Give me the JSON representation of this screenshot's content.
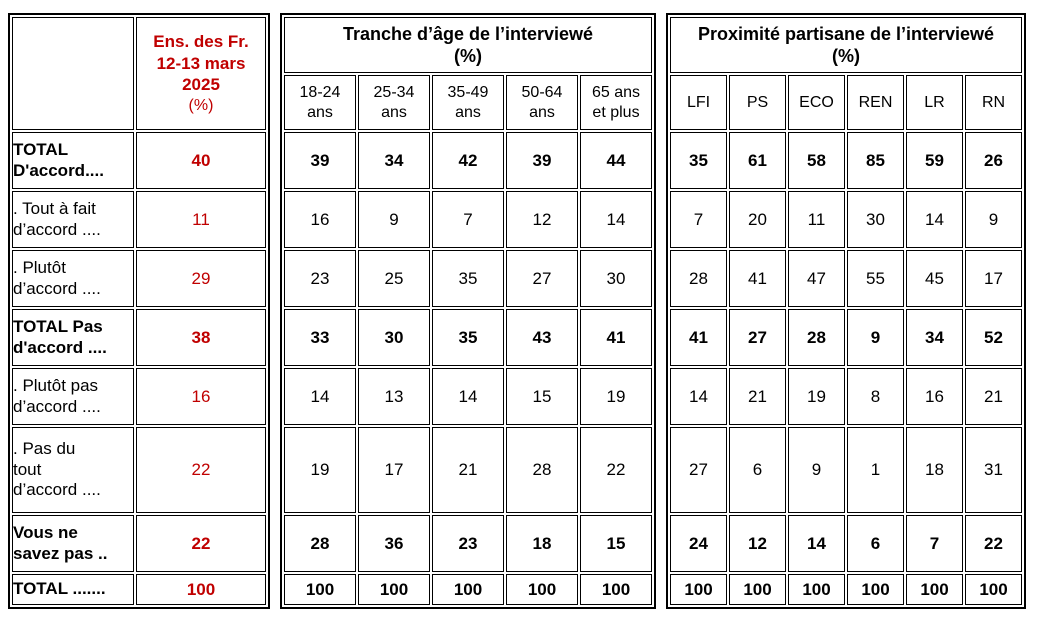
{
  "colors": {
    "accent_red": "#C00000",
    "border_black": "#000000",
    "background": "#FFFFFF"
  },
  "ensemble_table": {
    "header": {
      "title": "Ens. des Fr.\n12-13 mars\n2025",
      "unit": "(%)"
    }
  },
  "age_table": {
    "title": "Tranche d’âge de l’interviewé",
    "unit": "(%)",
    "columns": [
      "18-24\nans",
      "25-34\nans",
      "35-49\nans",
      "50-64\nans",
      "65 ans\net plus"
    ]
  },
  "party_table": {
    "title": "Proximité partisane de l’interviewé",
    "unit": "(%)",
    "columns": [
      "LFI",
      "PS",
      "ECO",
      "REN",
      "LR",
      "RN"
    ]
  },
  "rows": [
    {
      "label": "TOTAL\nD'accord....",
      "bold": true,
      "ensemble": "40",
      "age": [
        "39",
        "34",
        "42",
        "39",
        "44"
      ],
      "party": [
        "35",
        "61",
        "58",
        "85",
        "59",
        "26"
      ]
    },
    {
      "label": ". Tout à fait\nd’accord ....",
      "bold": false,
      "ensemble": "11",
      "age": [
        "16",
        "9",
        "7",
        "12",
        "14"
      ],
      "party": [
        "7",
        "20",
        "11",
        "30",
        "14",
        "9"
      ]
    },
    {
      "label": ". Plutôt\nd’accord ....",
      "bold": false,
      "ensemble": "29",
      "age": [
        "23",
        "25",
        "35",
        "27",
        "30"
      ],
      "party": [
        "28",
        "41",
        "47",
        "55",
        "45",
        "17"
      ]
    },
    {
      "label": "TOTAL Pas\nd'accord ....",
      "bold": true,
      "ensemble": "38",
      "age": [
        "33",
        "30",
        "35",
        "43",
        "41"
      ],
      "party": [
        "41",
        "27",
        "28",
        "9",
        "34",
        "52"
      ]
    },
    {
      "label": ". Plutôt pas\nd’accord ....",
      "bold": false,
      "ensemble": "16",
      "age": [
        "14",
        "13",
        "14",
        "15",
        "19"
      ],
      "party": [
        "14",
        "21",
        "19",
        "8",
        "16",
        "21"
      ]
    },
    {
      "label": ". Pas du\ntout\nd’accord ....",
      "bold": false,
      "ensemble": "22",
      "age": [
        "19",
        "17",
        "21",
        "28",
        "22"
      ],
      "party": [
        "27",
        "6",
        "9",
        "1",
        "18",
        "31"
      ]
    },
    {
      "label": "Vous ne\nsavez pas ..",
      "bold": true,
      "ensemble": "22",
      "age": [
        "28",
        "36",
        "23",
        "18",
        "15"
      ],
      "party": [
        "24",
        "12",
        "14",
        "6",
        "7",
        "22"
      ]
    },
    {
      "label": "TOTAL .......",
      "bold": true,
      "ensemble": "100",
      "age": [
        "100",
        "100",
        "100",
        "100",
        "100"
      ],
      "party": [
        "100",
        "100",
        "100",
        "100",
        "100",
        "100"
      ]
    }
  ]
}
